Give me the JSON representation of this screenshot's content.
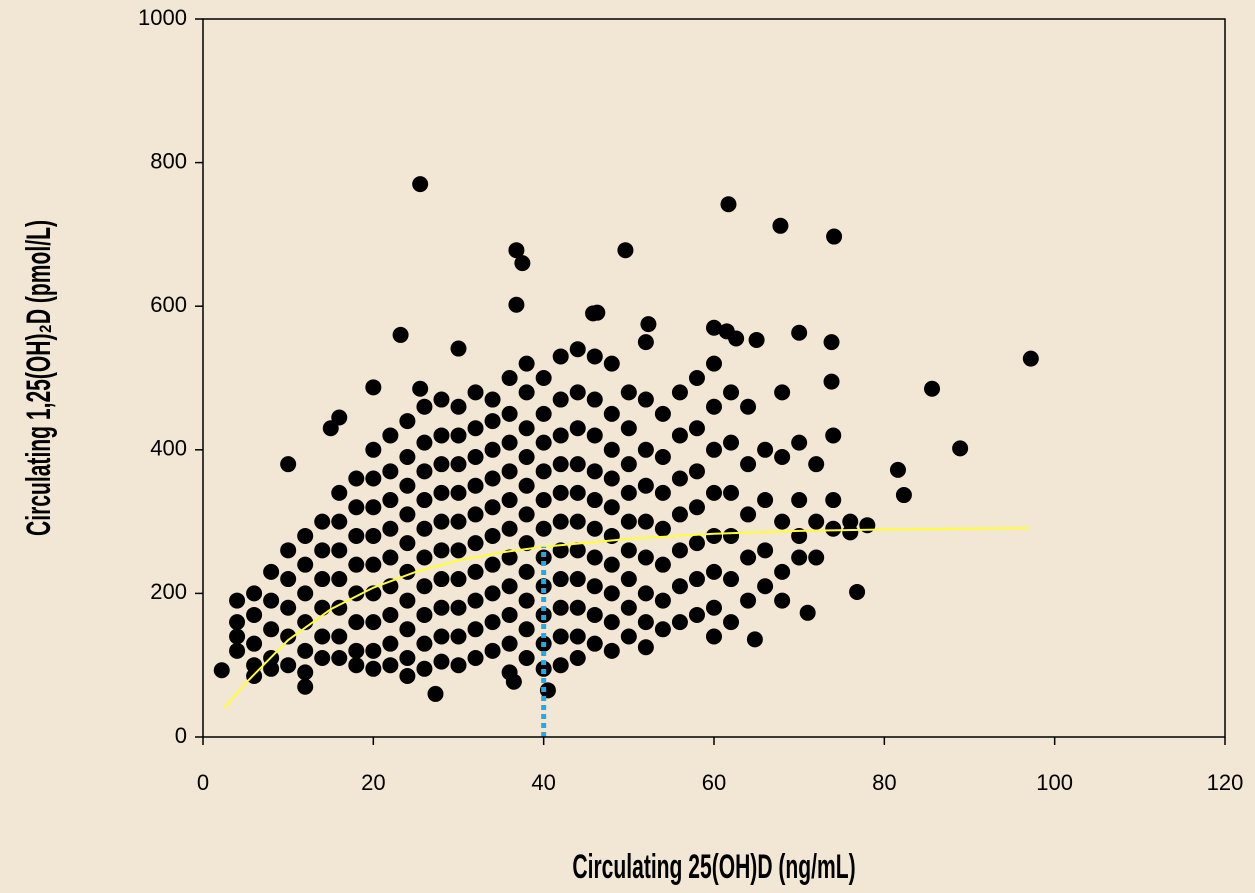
{
  "chart_data": {
    "type": "scatter",
    "xlabel": "Circulating 25(OH)D (ng/mL)",
    "ylabel": "Circulating 1,25(OH)₂D (pmol/L)",
    "xlim": [
      0,
      120
    ],
    "xticks": [
      0,
      20,
      40,
      60,
      80,
      100,
      120
    ],
    "ylim": [
      0,
      1000
    ],
    "yticks": [
      0,
      200,
      400,
      600,
      800,
      1000
    ],
    "color": "#000000",
    "x": [
      25.5,
      61.7,
      67.8,
      74.1,
      36.8,
      49.6,
      37.5,
      36.8,
      45.8,
      46.3,
      23.2,
      52.3,
      60,
      70,
      73.8,
      61.5,
      62.6,
      65,
      97.2,
      85.6,
      88.9,
      81.6,
      82.3,
      73.8,
      76.8,
      71,
      64.8,
      2.2,
      27.3,
      40.5,
      36.5,
      12,
      30,
      20,
      25.5,
      16,
      15,
      4,
      4,
      4,
      4,
      6,
      6,
      6,
      6,
      6,
      8,
      8,
      8,
      8,
      8,
      10,
      10,
      10,
      10,
      10,
      10,
      12,
      12,
      12,
      12,
      12,
      12,
      14,
      14,
      14,
      14,
      14,
      14,
      16,
      16,
      16,
      16,
      16,
      16,
      16,
      18,
      18,
      18,
      18,
      18,
      18,
      18,
      18,
      20,
      20,
      20,
      20,
      20,
      20,
      20,
      20,
      20,
      22,
      22,
      22,
      22,
      22,
      22,
      22,
      22,
      22,
      24,
      24,
      24,
      24,
      24,
      24,
      24,
      24,
      24,
      24,
      26,
      26,
      26,
      26,
      26,
      26,
      26,
      26,
      26,
      26,
      28,
      28,
      28,
      28,
      28,
      28,
      28,
      28,
      28,
      28,
      30,
      30,
      30,
      30,
      30,
      30,
      30,
      30,
      30,
      30,
      32,
      32,
      32,
      32,
      32,
      32,
      32,
      32,
      32,
      32,
      34,
      34,
      34,
      34,
      34,
      34,
      34,
      34,
      34,
      34,
      36,
      36,
      36,
      36,
      36,
      36,
      36,
      36,
      36,
      36,
      36,
      38,
      38,
      38,
      38,
      38,
      38,
      38,
      38,
      38,
      38,
      38,
      40,
      40,
      40,
      40,
      40,
      40,
      40,
      40,
      40,
      40,
      40,
      42,
      42,
      42,
      42,
      42,
      42,
      42,
      42,
      42,
      42,
      42,
      44,
      44,
      44,
      44,
      44,
      44,
      44,
      44,
      44,
      44,
      44,
      46,
      46,
      46,
      46,
      46,
      46,
      46,
      46,
      46,
      46,
      48,
      48,
      48,
      48,
      48,
      48,
      48,
      48,
      48,
      48,
      50,
      50,
      50,
      50,
      50,
      50,
      50,
      50,
      50,
      52,
      52,
      52,
      52,
      52,
      52,
      52,
      52,
      52,
      54,
      54,
      54,
      54,
      54,
      54,
      54,
      56,
      56,
      56,
      56,
      56,
      56,
      56,
      58,
      58,
      58,
      58,
      58,
      58,
      58,
      60,
      60,
      60,
      60,
      60,
      60,
      60,
      60,
      62,
      62,
      62,
      62,
      62,
      62,
      64,
      64,
      64,
      64,
      64,
      66,
      66,
      66,
      66,
      68,
      68,
      68,
      68,
      68,
      70,
      70,
      70,
      70,
      72,
      72,
      72,
      74,
      74,
      74,
      76,
      76,
      78
    ],
    "values": [
      770,
      742,
      712,
      697,
      678,
      678,
      660,
      602,
      590,
      591,
      560,
      575,
      570,
      563,
      550,
      565,
      555,
      553,
      527,
      485,
      402,
      372,
      337,
      495,
      202,
      173,
      136,
      93,
      60,
      65,
      77,
      70,
      541,
      487,
      485,
      445,
      430,
      190,
      160,
      140,
      120,
      200,
      170,
      130,
      100,
      85,
      230,
      190,
      150,
      110,
      95,
      260,
      380,
      220,
      180,
      140,
      100,
      280,
      240,
      200,
      160,
      120,
      90,
      300,
      260,
      220,
      180,
      140,
      110,
      340,
      300,
      260,
      220,
      180,
      140,
      110,
      360,
      320,
      280,
      240,
      200,
      160,
      120,
      100,
      400,
      360,
      320,
      280,
      240,
      200,
      160,
      120,
      95,
      420,
      370,
      330,
      290,
      250,
      210,
      170,
      130,
      100,
      440,
      390,
      350,
      310,
      270,
      230,
      190,
      150,
      110,
      85,
      460,
      410,
      370,
      330,
      290,
      250,
      210,
      170,
      130,
      95,
      470,
      420,
      380,
      340,
      300,
      260,
      220,
      180,
      140,
      105,
      460,
      420,
      380,
      340,
      300,
      260,
      220,
      180,
      140,
      100,
      480,
      430,
      390,
      350,
      310,
      270,
      230,
      190,
      150,
      110,
      470,
      440,
      400,
      360,
      320,
      280,
      240,
      200,
      160,
      120,
      500,
      450,
      410,
      370,
      330,
      290,
      250,
      210,
      170,
      130,
      90,
      520,
      480,
      430,
      390,
      350,
      310,
      270,
      230,
      190,
      150,
      110,
      500,
      450,
      410,
      370,
      330,
      290,
      250,
      210,
      170,
      130,
      95,
      530,
      470,
      420,
      380,
      340,
      300,
      260,
      220,
      180,
      140,
      100,
      540,
      480,
      430,
      380,
      340,
      300,
      260,
      220,
      180,
      140,
      110,
      530,
      470,
      420,
      370,
      330,
      290,
      250,
      210,
      170,
      130,
      520,
      450,
      400,
      360,
      320,
      280,
      240,
      200,
      160,
      120,
      480,
      430,
      380,
      340,
      300,
      260,
      220,
      180,
      140,
      550,
      470,
      400,
      350,
      300,
      250,
      200,
      160,
      125,
      450,
      390,
      340,
      290,
      240,
      190,
      150,
      480,
      420,
      360,
      310,
      260,
      210,
      160,
      500,
      430,
      370,
      320,
      270,
      220,
      170,
      520,
      460,
      400,
      340,
      280,
      230,
      180,
      140,
      480,
      410,
      340,
      280,
      220,
      160,
      460,
      380,
      310,
      250,
      190,
      400,
      330,
      260,
      210,
      480,
      390,
      300,
      230,
      190,
      410,
      330,
      280,
      250,
      380,
      300,
      250,
      420,
      330,
      290,
      300,
      285,
      295
    ],
    "lines": [
      {
        "color": "#ffff33",
        "dashed": false,
        "x": [
          2.5,
          5,
          10,
          15,
          20,
          25,
          30,
          35,
          40,
          50,
          60,
          70,
          80,
          97
        ],
        "values": [
          40,
          75,
          135,
          178,
          208,
          230,
          246,
          257,
          265,
          276,
          283,
          287,
          289,
          291
        ]
      },
      {
        "color": "#29a8e0",
        "dashed": true,
        "x": [
          40,
          40
        ],
        "values": [
          0,
          265
        ]
      }
    ]
  }
}
